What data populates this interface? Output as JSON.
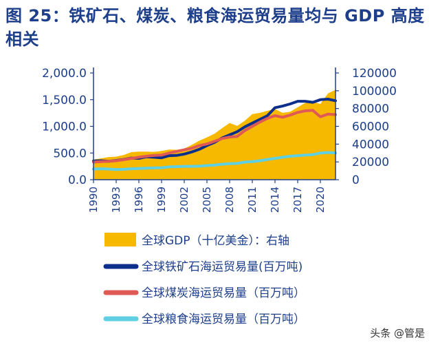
{
  "title": "图 25：铁矿石、煤炭、粮食海运贸易量均与 GDP 高度相关",
  "watermark": "头条 @管是",
  "colors": {
    "gdp": "#f7b800",
    "iron": "#0c2f8c",
    "coal": "#e05a55",
    "grain": "#5fd0e3",
    "axis": "#1d3e8a",
    "title": "#1d3e8a"
  },
  "chart_data": {
    "type": "area",
    "x": [
      1990,
      1991,
      1992,
      1993,
      1994,
      1995,
      1996,
      1997,
      1998,
      1999,
      2000,
      2001,
      2002,
      2003,
      2004,
      2005,
      2006,
      2007,
      2008,
      2009,
      2010,
      2011,
      2012,
      2013,
      2014,
      2015,
      2016,
      2017,
      2018,
      2019,
      2020,
      2021,
      2022
    ],
    "x_ticks": [
      "1990",
      "1993",
      "1996",
      "1999",
      "2002",
      "2005",
      "2008",
      "2011",
      "2014",
      "2017",
      "2020"
    ],
    "y_left": {
      "ticks": [
        "0.0",
        "500.0",
        "1,000.0",
        "1,500.0",
        "2,000.0"
      ],
      "range": [
        0,
        2000
      ]
    },
    "y_right": {
      "ticks": [
        "0",
        "20000",
        "40000",
        "60000",
        "80000",
        "100000",
        "120000"
      ],
      "range": [
        0,
        120000
      ]
    },
    "series": [
      {
        "name": "全球GDP（十亿美金）：右轴",
        "axis": "right",
        "type": "area",
        "values": [
          22800,
          24000,
          25500,
          25900,
          27800,
          31000,
          31600,
          31500,
          31300,
          32400,
          33800,
          33600,
          35000,
          39200,
          43800,
          47600,
          51600,
          58000,
          63800,
          60500,
          66300,
          73700,
          75200,
          77500,
          79400,
          75200,
          76300,
          81400,
          86400,
          87600,
          85200,
          97000,
          101000
        ]
      },
      {
        "name": "全球铁矿石海运贸易量(百万吨)",
        "axis": "left",
        "type": "line",
        "values": [
          350,
          355,
          345,
          360,
          380,
          405,
          400,
          430,
          420,
          410,
          450,
          455,
          480,
          520,
          570,
          640,
          700,
          780,
          840,
          900,
          990,
          1060,
          1130,
          1200,
          1350,
          1380,
          1420,
          1470,
          1470,
          1450,
          1500,
          1510,
          1480
        ]
      },
      {
        "name": "全球煤炭海运贸易量（百万吨）",
        "axis": "left",
        "type": "line",
        "values": [
          330,
          340,
          345,
          355,
          375,
          400,
          420,
          440,
          455,
          460,
          500,
          530,
          560,
          590,
          640,
          670,
          720,
          770,
          800,
          810,
          920,
          1000,
          1080,
          1150,
          1200,
          1170,
          1210,
          1260,
          1290,
          1300,
          1180,
          1230,
          1220
        ]
      },
      {
        "name": "全球粮食海运贸易量（百万吨）",
        "axis": "left",
        "type": "line",
        "values": [
          200,
          205,
          200,
          190,
          195,
          205,
          210,
          215,
          220,
          225,
          240,
          245,
          250,
          250,
          255,
          265,
          275,
          290,
          300,
          305,
          330,
          340,
          355,
          380,
          400,
          420,
          440,
          450,
          460,
          470,
          500,
          510,
          500
        ]
      }
    ]
  }
}
